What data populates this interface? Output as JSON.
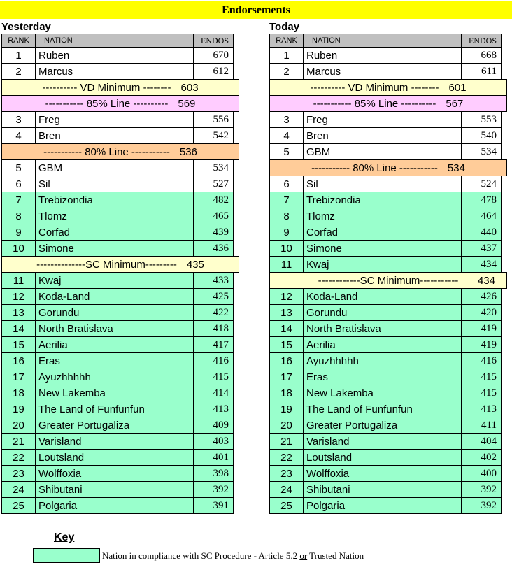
{
  "title": "Endorsements",
  "colors": {
    "banner": "#FFFF00",
    "header": "#C0C0C0",
    "yellow": "#FFFFCC",
    "pink": "#FFCCFF",
    "orange": "#FFCC99",
    "green": "#99FFCC",
    "white": "#FFFFFF"
  },
  "columns": [
    "RANK",
    "NATION",
    "ENDOS"
  ],
  "tables": [
    {
      "label": "Yesterday",
      "rows": [
        {
          "type": "nation",
          "rank": 1,
          "nation": "Ruben",
          "endos": 670,
          "highlight": "white"
        },
        {
          "type": "nation",
          "rank": 2,
          "nation": "Marcus",
          "endos": 612,
          "highlight": "white"
        },
        {
          "type": "divider",
          "label": "---------- VD Minimum --------",
          "value": 603,
          "color": "yellow",
          "value_right": false
        },
        {
          "type": "divider",
          "label": "----------- 85% Line ----------",
          "value": 569,
          "color": "pink",
          "value_right": false
        },
        {
          "type": "nation",
          "rank": 3,
          "nation": "Freg",
          "endos": 556,
          "highlight": "white"
        },
        {
          "type": "nation",
          "rank": 4,
          "nation": "Bren",
          "endos": 542,
          "highlight": "white"
        },
        {
          "type": "divider",
          "label": "----------- 80% Line -----------",
          "value": 536,
          "color": "orange",
          "value_right": false
        },
        {
          "type": "nation",
          "rank": 5,
          "nation": "GBM",
          "endos": 534,
          "highlight": "white"
        },
        {
          "type": "nation",
          "rank": 6,
          "nation": "Sil",
          "endos": 527,
          "highlight": "white"
        },
        {
          "type": "nation",
          "rank": 7,
          "nation": "Trebizondia",
          "endos": 482,
          "highlight": "green"
        },
        {
          "type": "nation",
          "rank": 8,
          "nation": "Tlomz",
          "endos": 465,
          "highlight": "green"
        },
        {
          "type": "nation",
          "rank": 9,
          "nation": "Corfad",
          "endos": 439,
          "highlight": "green"
        },
        {
          "type": "nation",
          "rank": 10,
          "nation": "Simone",
          "endos": 436,
          "highlight": "green"
        },
        {
          "type": "divider",
          "label": "--------------SC Minimum---------",
          "value": 435,
          "color": "yellow",
          "value_right": false
        },
        {
          "type": "nation",
          "rank": 11,
          "nation": "Kwaj",
          "endos": 433,
          "highlight": "green"
        },
        {
          "type": "nation",
          "rank": 12,
          "nation": "Koda-Land",
          "endos": 425,
          "highlight": "green"
        },
        {
          "type": "nation",
          "rank": 13,
          "nation": "Gorundu",
          "endos": 422,
          "highlight": "green"
        },
        {
          "type": "nation",
          "rank": 14,
          "nation": "North Bratislava",
          "endos": 418,
          "highlight": "green"
        },
        {
          "type": "nation",
          "rank": 15,
          "nation": "Aerilia",
          "endos": 417,
          "highlight": "green"
        },
        {
          "type": "nation",
          "rank": 16,
          "nation": "Eras",
          "endos": 416,
          "highlight": "green"
        },
        {
          "type": "nation",
          "rank": 17,
          "nation": "Ayuzhhhhh",
          "endos": 415,
          "highlight": "green"
        },
        {
          "type": "nation",
          "rank": 18,
          "nation": "New Lakemba",
          "endos": 414,
          "highlight": "green"
        },
        {
          "type": "nation",
          "rank": 19,
          "nation": "The Land of Funfunfun",
          "endos": 413,
          "highlight": "green"
        },
        {
          "type": "nation",
          "rank": 20,
          "nation": "Greater Portugaliza",
          "endos": 409,
          "highlight": "green"
        },
        {
          "type": "nation",
          "rank": 21,
          "nation": "Varisland",
          "endos": 403,
          "highlight": "green"
        },
        {
          "type": "nation",
          "rank": 22,
          "nation": "Loutsland",
          "endos": 401,
          "highlight": "green"
        },
        {
          "type": "nation",
          "rank": 23,
          "nation": "Wolffoxia",
          "endos": 398,
          "highlight": "green"
        },
        {
          "type": "nation",
          "rank": 24,
          "nation": "Shibutani",
          "endos": 392,
          "highlight": "green"
        },
        {
          "type": "nation",
          "rank": 25,
          "nation": "Polgaria",
          "endos": 391,
          "highlight": "green"
        }
      ]
    },
    {
      "label": "Today",
      "rows": [
        {
          "type": "nation",
          "rank": 1,
          "nation": "Ruben",
          "endos": 668,
          "highlight": "white"
        },
        {
          "type": "nation",
          "rank": 2,
          "nation": "Marcus",
          "endos": 611,
          "highlight": "white"
        },
        {
          "type": "divider",
          "label": "---------- VD Minimum --------",
          "value": 601,
          "color": "yellow",
          "value_right": false
        },
        {
          "type": "divider",
          "label": "----------- 85% Line ----------",
          "value": 567,
          "color": "pink",
          "value_right": false
        },
        {
          "type": "nation",
          "rank": 3,
          "nation": "Freg",
          "endos": 553,
          "highlight": "white"
        },
        {
          "type": "nation",
          "rank": 4,
          "nation": "Bren",
          "endos": 540,
          "highlight": "white"
        },
        {
          "type": "nation",
          "rank": 5,
          "nation": "GBM",
          "endos": 534,
          "highlight": "white"
        },
        {
          "type": "divider",
          "label": "----------- 80% Line -----------",
          "value": 534,
          "color": "orange",
          "value_right": false
        },
        {
          "type": "nation",
          "rank": 6,
          "nation": "Sil",
          "endos": 524,
          "highlight": "white"
        },
        {
          "type": "nation",
          "rank": 7,
          "nation": "Trebizondia",
          "endos": 478,
          "highlight": "green"
        },
        {
          "type": "nation",
          "rank": 8,
          "nation": "Tlomz",
          "endos": 464,
          "highlight": "green"
        },
        {
          "type": "nation",
          "rank": 9,
          "nation": "Corfad",
          "endos": 440,
          "highlight": "green"
        },
        {
          "type": "nation",
          "rank": 10,
          "nation": "Simone",
          "endos": 437,
          "highlight": "green"
        },
        {
          "type": "nation",
          "rank": 11,
          "nation": "Kwaj",
          "endos": 434,
          "highlight": "green"
        },
        {
          "type": "divider",
          "label": "------------SC Minimum-----------",
          "value": 434,
          "color": "yellow",
          "value_right": true
        },
        {
          "type": "nation",
          "rank": 12,
          "nation": "Koda-Land",
          "endos": 426,
          "highlight": "green"
        },
        {
          "type": "nation",
          "rank": 13,
          "nation": "Gorundu",
          "endos": 420,
          "highlight": "green"
        },
        {
          "type": "nation",
          "rank": 14,
          "nation": "North Bratislava",
          "endos": 419,
          "highlight": "green"
        },
        {
          "type": "nation",
          "rank": 15,
          "nation": "Aerilia",
          "endos": 419,
          "highlight": "green"
        },
        {
          "type": "nation",
          "rank": 16,
          "nation": "Ayuzhhhhh",
          "endos": 416,
          "highlight": "green"
        },
        {
          "type": "nation",
          "rank": 17,
          "nation": "Eras",
          "endos": 415,
          "highlight": "green"
        },
        {
          "type": "nation",
          "rank": 18,
          "nation": "New Lakemba",
          "endos": 415,
          "highlight": "green"
        },
        {
          "type": "nation",
          "rank": 19,
          "nation": "The Land of Funfunfun",
          "endos": 413,
          "highlight": "green"
        },
        {
          "type": "nation",
          "rank": 20,
          "nation": "Greater Portugaliza",
          "endos": 411,
          "highlight": "green"
        },
        {
          "type": "nation",
          "rank": 21,
          "nation": "Varisland",
          "endos": 404,
          "highlight": "green"
        },
        {
          "type": "nation",
          "rank": 22,
          "nation": "Loutsland",
          "endos": 402,
          "highlight": "green"
        },
        {
          "type": "nation",
          "rank": 23,
          "nation": "Wolffoxia",
          "endos": 400,
          "highlight": "green"
        },
        {
          "type": "nation",
          "rank": 24,
          "nation": "Shibutani",
          "endos": 392,
          "highlight": "green"
        },
        {
          "type": "nation",
          "rank": 25,
          "nation": "Polgaria",
          "endos": 392,
          "highlight": "green"
        }
      ]
    }
  ],
  "key": {
    "heading": "Key",
    "swatch_color": "#99FFCC",
    "text_before_or": "Nation in compliance with SC Procedure - Article 5.2 ",
    "or_word": "or",
    "text_after_or": " Trusted Nation"
  }
}
